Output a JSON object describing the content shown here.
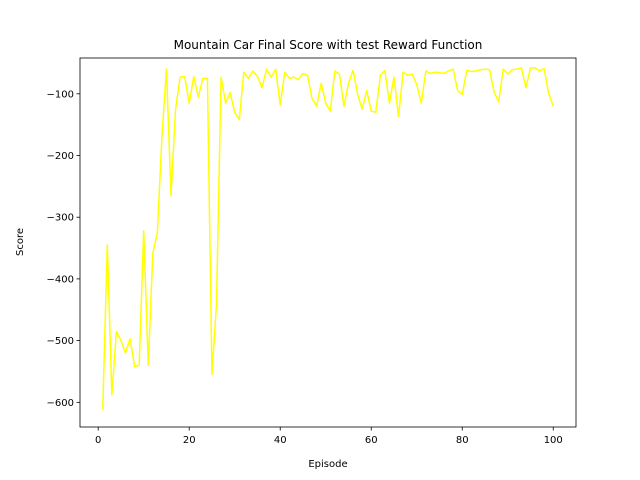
{
  "chart_data": {
    "type": "line",
    "title": "Mountain Car Final Score with test Reward Function",
    "xlabel": "Episode",
    "ylabel": "Score",
    "xlim": [
      -4,
      105
    ],
    "ylim": [
      -640,
      -42
    ],
    "xticks": [
      0,
      20,
      40,
      60,
      80,
      100
    ],
    "yticks": [
      -600,
      -500,
      -400,
      -300,
      -200,
      -100
    ],
    "ytick_labels": [
      "−600",
      "−500",
      "−400",
      "−300",
      "−200",
      "−100"
    ],
    "grid": false,
    "line_color": "#ffff00",
    "series": [
      {
        "x": [
          1,
          2,
          3,
          4,
          5,
          6,
          7,
          8,
          9,
          10,
          11,
          12,
          13,
          14,
          15,
          16,
          17,
          18,
          19,
          20,
          21,
          22,
          23,
          24,
          25,
          26,
          27,
          28,
          29,
          30,
          31,
          32,
          33,
          34,
          35,
          36,
          37,
          38,
          39,
          40,
          41,
          42,
          43,
          44,
          45,
          46,
          47,
          48,
          49,
          50,
          51,
          52,
          53,
          54,
          55,
          56,
          57,
          58,
          59,
          60,
          61,
          62,
          63,
          64,
          65,
          66,
          67,
          68,
          69,
          70,
          71,
          72,
          73,
          74,
          75,
          76,
          77,
          78,
          79,
          80,
          81,
          82,
          83,
          84,
          85,
          86,
          87,
          88,
          89,
          90,
          91,
          92,
          93,
          94,
          95,
          96,
          97,
          98,
          99,
          100
        ],
        "values": [
          -612,
          -345,
          -588,
          -485,
          -500,
          -520,
          -497,
          -542,
          -540,
          -322,
          -540,
          -358,
          -325,
          -170,
          -60,
          -265,
          -125,
          -73,
          -72,
          -115,
          -72,
          -105,
          -75,
          -75,
          -555,
          -440,
          -73,
          -115,
          -98,
          -130,
          -142,
          -65,
          -75,
          -63,
          -72,
          -90,
          -60,
          -73,
          -60,
          -118,
          -65,
          -75,
          -73,
          -77,
          -67,
          -70,
          -108,
          -120,
          -83,
          -115,
          -128,
          -63,
          -68,
          -120,
          -83,
          -62,
          -100,
          -125,
          -95,
          -128,
          -130,
          -70,
          -62,
          -115,
          -73,
          -137,
          -65,
          -70,
          -68,
          -85,
          -115,
          -63,
          -67,
          -65,
          -66,
          -67,
          -63,
          -60,
          -95,
          -101,
          -62,
          -64,
          -63,
          -61,
          -60,
          -61,
          -97,
          -113,
          -60,
          -68,
          -61,
          -60,
          -58,
          -90,
          -58,
          -58,
          -63,
          -59,
          -100,
          -120
        ]
      }
    ]
  }
}
